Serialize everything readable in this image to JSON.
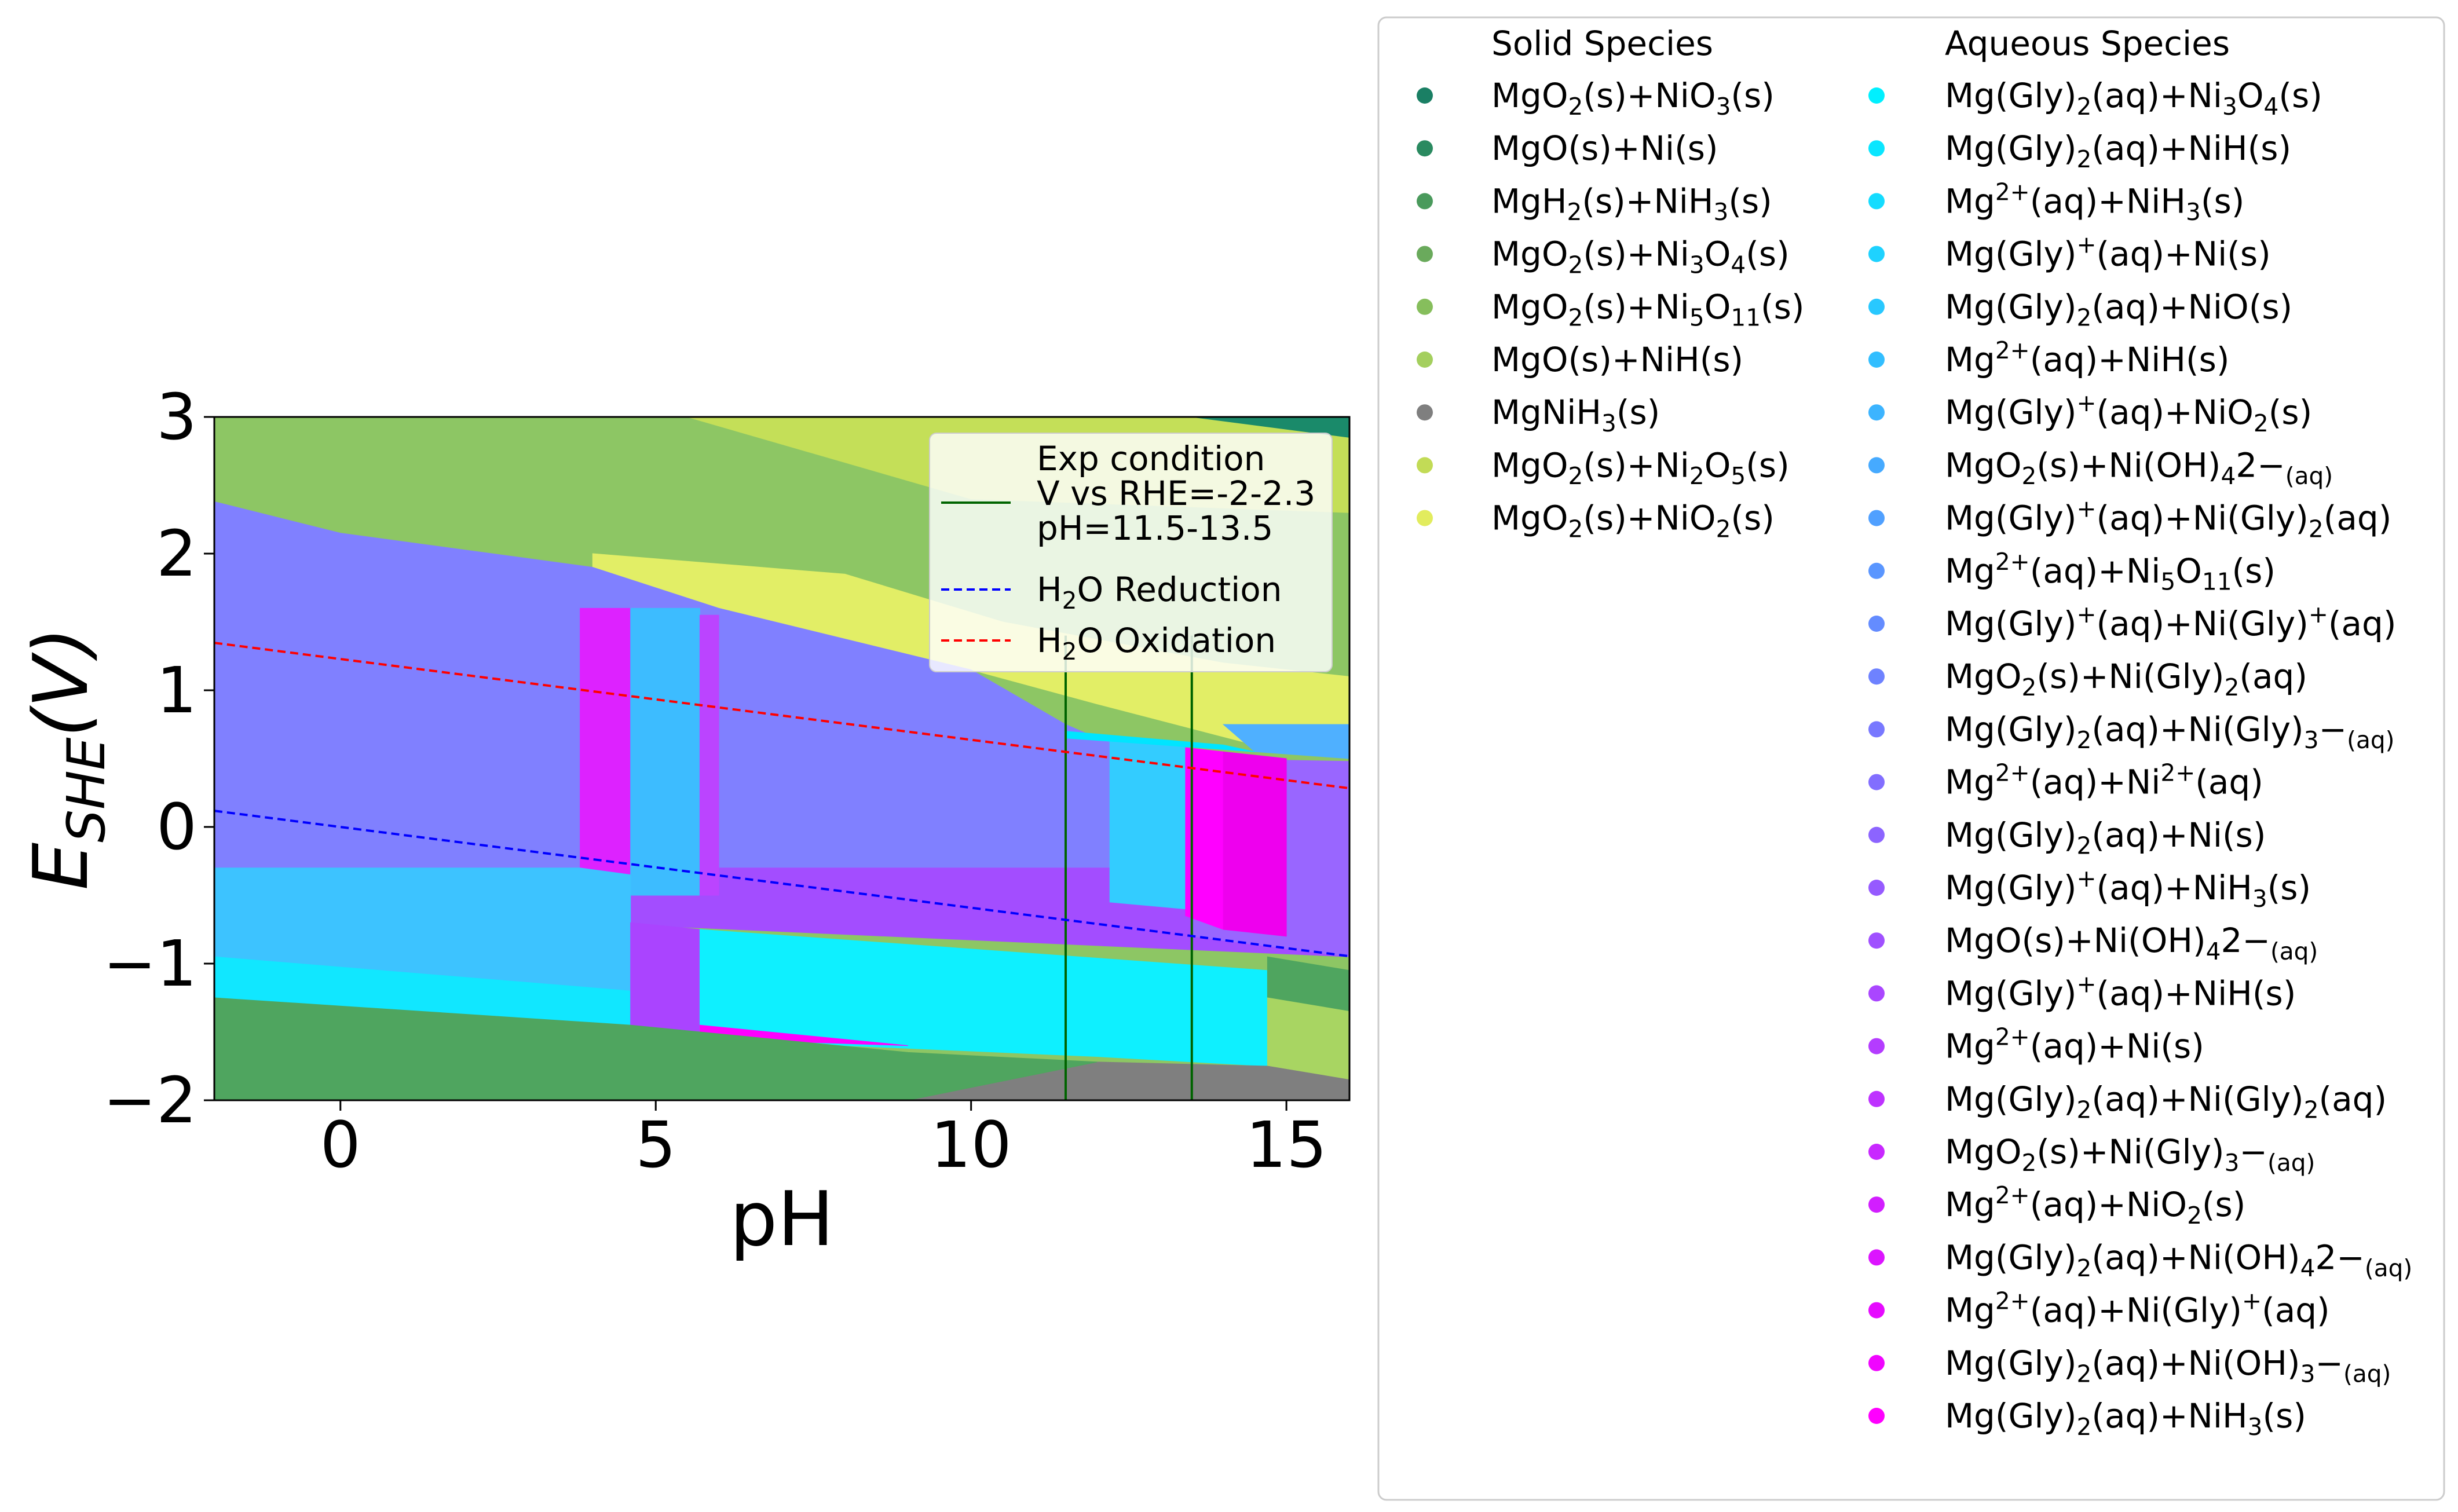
{
  "chart_data": {
    "type": "area",
    "title": "",
    "xlabel": "pH",
    "ylabel": "E_SHE(V)",
    "xlim": [
      -2,
      16
    ],
    "ylim": [
      -2,
      3
    ],
    "xticks": [
      0,
      5,
      10,
      15
    ],
    "yticks": [
      -2,
      -1,
      0,
      1,
      2,
      3
    ],
    "grid": false,
    "legend_placement": "right",
    "inset_legend_placement": "top-right",
    "lines": [
      {
        "name": "V vs RHE=-2-2.3",
        "legend": [
          "Exp condition",
          "V vs RHE=-2-2.3",
          "pH=11.5-13.5"
        ],
        "style": "solid",
        "color": "#006400",
        "x": [
          11.5,
          11.5
        ],
        "y": [
          -2,
          1.4
        ]
      },
      {
        "name": "V vs RHE=-2-2.3",
        "style": "solid",
        "color": "#006400",
        "x": [
          13.5,
          13.5
        ],
        "y": [
          -2,
          1.4
        ]
      },
      {
        "name": "H2O Reduction",
        "legend": [
          "H",
          "2",
          "O Reduction"
        ],
        "style": "dashed",
        "color": "#0000ff",
        "x": [
          -2,
          16
        ],
        "y": [
          0.118,
          -0.946
        ]
      },
      {
        "name": "H2O Oxidation",
        "legend": [
          "H",
          "2",
          "O Oxidation"
        ],
        "style": "dashed",
        "color": "#ff0000",
        "x": [
          -2,
          16
        ],
        "y": [
          1.347,
          0.283
        ]
      }
    ],
    "regions": [
      {
        "species": "MgO(s)+NiH(s)",
        "color": "#8dc664",
        "points": [
          [
            -2,
            3
          ],
          [
            16,
            3
          ],
          [
            16,
            -2
          ],
          [
            -2,
            -2
          ]
        ]
      },
      {
        "species": "MgO2(s)+Ni2O5(s)",
        "color": "#c4df58",
        "points": [
          [
            5.5,
            3
          ],
          [
            16,
            3
          ],
          [
            16,
            2.3
          ],
          [
            10,
            2.4
          ],
          [
            5.5,
            3
          ]
        ]
      },
      {
        "species": "MgO2(s)+NiO3(s)",
        "color": "#1a8a6a",
        "points": [
          [
            13.5,
            3
          ],
          [
            16,
            3
          ],
          [
            16,
            2.85
          ]
        ]
      },
      {
        "species": "MgO2(s)+NiO2(s)",
        "color": "#e2ee66",
        "points": [
          [
            4,
            2.0
          ],
          [
            8,
            1.85
          ],
          [
            10.5,
            1.5
          ],
          [
            14,
            1.2
          ],
          [
            16,
            1.1
          ],
          [
            16,
            0.65
          ],
          [
            14.5,
            0.6
          ],
          [
            12,
            0.9
          ],
          [
            10,
            1.15
          ],
          [
            6,
            1.6
          ],
          [
            4,
            1.9
          ]
        ]
      },
      {
        "species": "Mg(Gly)2(aq)+Ni(Gly)3-(aq)",
        "color": "#8080ff",
        "points": [
          [
            -2,
            2.38
          ],
          [
            0,
            2.15
          ],
          [
            4,
            1.9
          ],
          [
            6,
            1.6
          ],
          [
            10,
            1.15
          ],
          [
            11.5,
            0.75
          ],
          [
            12,
            0.65
          ],
          [
            14,
            0.5
          ],
          [
            16,
            0.4
          ],
          [
            16,
            -0.3
          ],
          [
            -2,
            -0.3
          ]
        ]
      },
      {
        "species": "Mg(Gly)2(aq)+NiO(s)",
        "color": "#4fb0ff",
        "points": [
          [
            14,
            0.75
          ],
          [
            16,
            0.75
          ],
          [
            16,
            0.5
          ],
          [
            14.5,
            0.55
          ]
        ]
      },
      {
        "species": "Mg(Gly)+(aq)+NiH3(s)",
        "color": "#a34dff",
        "points": [
          [
            3.8,
            -0.3
          ],
          [
            16,
            -0.3
          ],
          [
            16,
            -0.95
          ],
          [
            3.8,
            -0.7
          ]
        ]
      },
      {
        "species": "Mg(Gly)2(aq)+Ni(s)",
        "color": "#9966ff",
        "points": [
          [
            13.5,
            0.5
          ],
          [
            16,
            0.48
          ],
          [
            16,
            -0.95
          ],
          [
            13.5,
            -0.8
          ]
        ]
      },
      {
        "species": "Mg2+(aq)+Ni(OH)4 2-(aq)",
        "color": "#dd22ff",
        "points": [
          [
            3.8,
            1.6
          ],
          [
            4.6,
            1.6
          ],
          [
            4.6,
            -0.35
          ],
          [
            3.8,
            -0.35
          ]
        ]
      },
      {
        "species": "Mg(Gly)+(aq)+NiO2(s)",
        "color": "#3dbcff",
        "points": [
          [
            4.6,
            1.6
          ],
          [
            5.7,
            1.6
          ],
          [
            5.7,
            -0.5
          ],
          [
            4.6,
            -0.5
          ]
        ]
      },
      {
        "species": "Mg2+(aq)+NiO2(s)",
        "color": "#bb44ff",
        "points": [
          [
            5.7,
            1.55
          ],
          [
            6,
            1.55
          ],
          [
            6,
            -0.5
          ],
          [
            5.7,
            -0.5
          ]
        ]
      },
      {
        "species": "Mg(Gly)+(aq)+Ni(s)",
        "color": "#33ccff",
        "points": [
          [
            12.2,
            0.65
          ],
          [
            13.4,
            0.6
          ],
          [
            13.4,
            -0.6
          ],
          [
            12.2,
            -0.55
          ]
        ]
      },
      {
        "species": "Mg2+(aq)+Ni(Gly)+(aq)",
        "color": "#ff00ff",
        "points": [
          [
            13.4,
            0.58
          ],
          [
            14,
            0.55
          ],
          [
            14,
            -0.75
          ],
          [
            13.4,
            -0.65
          ]
        ]
      },
      {
        "species": "Mg(Gly)2(aq)+Ni(OH)4 2-(aq)",
        "color": "#ee00ee",
        "points": [
          [
            14,
            0.55
          ],
          [
            15,
            0.5
          ],
          [
            15,
            -0.8
          ],
          [
            14,
            -0.75
          ]
        ]
      },
      {
        "species": "Mg(Gly)2(aq)+Ni3O4(s)",
        "color": "#00e5ff",
        "points": [
          [
            11.5,
            0.7
          ],
          [
            14,
            0.6
          ],
          [
            14.5,
            0.55
          ],
          [
            11.5,
            0.65
          ]
        ]
      },
      {
        "species": "Mg2+(aq)+NiH(s)",
        "color": "#3dc3ff",
        "points": [
          [
            -2,
            -0.3
          ],
          [
            3.8,
            -0.3
          ],
          [
            4.6,
            -0.35
          ],
          [
            4.6,
            -1.45
          ],
          [
            -2,
            -1.25
          ]
        ]
      },
      {
        "species": "Mg(Gly)2(aq)+NiH(s)",
        "color": "#11e7ff",
        "points": [
          [
            -2,
            -0.95
          ],
          [
            4.6,
            -1.2
          ],
          [
            4.6,
            -1.45
          ],
          [
            -2,
            -1.25
          ]
        ]
      },
      {
        "species": "MgO(s)+Ni(OH)4 2-(aq)",
        "color": "#aa44ff",
        "points": [
          [
            4.6,
            -0.7
          ],
          [
            5.7,
            -0.75
          ],
          [
            5.7,
            -1.5
          ],
          [
            4.6,
            -1.45
          ]
        ]
      },
      {
        "species": "Mg(Gly)2(aq)+Ni3O4(s)",
        "color": "#0ef0ff",
        "points": [
          [
            5.7,
            -0.75
          ],
          [
            14.7,
            -1.05
          ],
          [
            14.7,
            -1.75
          ],
          [
            12,
            -1.68
          ],
          [
            8,
            -1.6
          ],
          [
            5.7,
            -1.5
          ]
        ]
      },
      {
        "species": "Mg(Gly)2(aq)+NiH3(s)",
        "color": "#ff00ff",
        "points": [
          [
            5.7,
            -1.45
          ],
          [
            9,
            -1.6
          ],
          [
            5.7,
            -1.55
          ]
        ]
      },
      {
        "species": "MgH2(s)+NiH3(s)",
        "color": "#4fa55f",
        "points": [
          [
            14.7,
            -0.95
          ],
          [
            16,
            -1.05
          ],
          [
            16,
            -1.35
          ],
          [
            14.7,
            -1.25
          ]
        ]
      },
      {
        "species": "MgO(s)+NiH(s)",
        "color": "#a8d562",
        "points": [
          [
            14.7,
            -1.25
          ],
          [
            16,
            -1.35
          ],
          [
            16,
            -1.85
          ],
          [
            14.7,
            -1.75
          ]
        ]
      },
      {
        "species": "MgNiH3(s)",
        "color": "#7f7f7f",
        "points": [
          [
            9,
            -2
          ],
          [
            16,
            -2
          ],
          [
            16,
            -1.85
          ],
          [
            14.7,
            -1.75
          ],
          [
            12,
            -1.72
          ]
        ]
      },
      {
        "species": "MgH2(s)+NiH3(s)",
        "color": "#4fa55f",
        "points": [
          [
            -2,
            -1.25
          ],
          [
            4.6,
            -1.45
          ],
          [
            9,
            -1.65
          ],
          [
            12,
            -1.72
          ],
          [
            9,
            -2
          ],
          [
            -2,
            -2
          ]
        ]
      }
    ],
    "legend": {
      "solid_title": "Solid Species",
      "aqueous_title": "Aqueous Species",
      "solid": [
        {
          "label": [
            "MgO",
            "2",
            "(s)+NiO",
            "3",
            "(s)"
          ],
          "color": "#1a7f64"
        },
        {
          "label": [
            "MgO(s)+Ni(s)"
          ],
          "color": "#2a8a60"
        },
        {
          "label": [
            "MgH",
            "2",
            "(s)+NiH",
            "3",
            "(s)"
          ],
          "color": "#4a9a5c"
        },
        {
          "label": [
            "MgO",
            "2",
            "(s)+Ni",
            "3",
            "O",
            "4",
            "(s)"
          ],
          "color": "#6aaa5c"
        },
        {
          "label": [
            "MgO",
            "2",
            "(s)+Ni",
            "5",
            "O",
            "11",
            "(s)"
          ],
          "color": "#86be5c"
        },
        {
          "label": [
            "MgO(s)+NiH(s)"
          ],
          "color": "#a4cf5e"
        },
        {
          "label": [
            "MgNiH",
            "3",
            "(s)"
          ],
          "color": "#7f7f7f"
        },
        {
          "label": [
            "MgO",
            "2",
            "(s)+Ni",
            "2",
            "O",
            "5",
            "(s)"
          ],
          "color": "#c2db56"
        },
        {
          "label": [
            "MgO",
            "2",
            "(s)+NiO",
            "2",
            "(s)"
          ],
          "color": "#e2ec5e"
        }
      ],
      "aqueous": [
        {
          "label": [
            "Mg(Gly)",
            "2",
            "(aq)+Ni",
            "3",
            "O",
            "4",
            "(s)"
          ],
          "color": "#00f0ff"
        },
        {
          "label": [
            "Mg(Gly)",
            "2",
            "(aq)+NiH(s)"
          ],
          "color": "#0ae6ff"
        },
        {
          "label": [
            "Mg",
            "2+",
            "(aq)+NiH",
            "3",
            "(s)"
          ],
          "color": "#14dcff"
        },
        {
          "label": [
            "Mg(Gly)",
            "+",
            "(aq)+Ni(s)"
          ],
          "color": "#1ed2ff"
        },
        {
          "label": [
            "Mg(Gly)",
            "2",
            "(aq)+NiO(s)"
          ],
          "color": "#28c8ff"
        },
        {
          "label": [
            "Mg",
            "2+",
            "(aq)+NiH(s)"
          ],
          "color": "#32beff"
        },
        {
          "label": [
            "Mg(Gly)",
            "+",
            "(aq)+NiO",
            "2",
            "(s)"
          ],
          "color": "#3cb4ff"
        },
        {
          "label": [
            "MgO",
            "2",
            "(s)+Ni(OH)",
            "4",
            "2−",
            "(aq)"
          ],
          "color": "#46aaff"
        },
        {
          "label": [
            "Mg(Gly)",
            "+",
            "(aq)+Ni(Gly)",
            "2",
            "(aq)"
          ],
          "color": "#50a0ff"
        },
        {
          "label": [
            "Mg",
            "2+",
            "(aq)+Ni",
            "5",
            "O",
            "11",
            "(s)"
          ],
          "color": "#5a96ff"
        },
        {
          "label": [
            "Mg(Gly)",
            "+",
            "(aq)+Ni(Gly)",
            "+",
            "(aq)"
          ],
          "color": "#648cff"
        },
        {
          "label": [
            "MgO",
            "2",
            "(s)+Ni(Gly)",
            "2",
            "(aq)"
          ],
          "color": "#6e82ff"
        },
        {
          "label": [
            "Mg(Gly)",
            "2",
            "(aq)+Ni(Gly)",
            "3",
            "−",
            "(aq)"
          ],
          "color": "#7878ff"
        },
        {
          "label": [
            "Mg",
            "2+",
            "(aq)+Ni",
            "2+",
            "(aq)"
          ],
          "color": "#826eff"
        },
        {
          "label": [
            "Mg(Gly)",
            "2",
            "(aq)+Ni(s)"
          ],
          "color": "#8c64ff"
        },
        {
          "label": [
            "Mg(Gly)",
            "+",
            "(aq)+NiH",
            "3",
            "(s)"
          ],
          "color": "#965aff"
        },
        {
          "label": [
            "MgO(s)+Ni(OH)",
            "4",
            "2−",
            "(aq)"
          ],
          "color": "#a050ff"
        },
        {
          "label": [
            "Mg(Gly)",
            "+",
            "(aq)+NiH(s)"
          ],
          "color": "#aa46ff"
        },
        {
          "label": [
            "Mg",
            "2+",
            "(aq)+Ni(s)"
          ],
          "color": "#b43cff"
        },
        {
          "label": [
            "Mg(Gly)",
            "2",
            "(aq)+Ni(Gly)",
            "2",
            "(aq)"
          ],
          "color": "#be32ff"
        },
        {
          "label": [
            "MgO",
            "2",
            "(s)+Ni(Gly)",
            "3",
            "−",
            "(aq)"
          ],
          "color": "#c828ff"
        },
        {
          "label": [
            "Mg",
            "2+",
            "(aq)+NiO",
            "2",
            "(s)"
          ],
          "color": "#d21eff"
        },
        {
          "label": [
            "Mg(Gly)",
            "2",
            "(aq)+Ni(OH)",
            "4",
            "2−",
            "(aq)"
          ],
          "color": "#dc14ff"
        },
        {
          "label": [
            "Mg",
            "2+",
            "(aq)+Ni(Gly)",
            "+",
            "(aq)"
          ],
          "color": "#e60aff"
        },
        {
          "label": [
            "Mg(Gly)",
            "2",
            "(aq)+Ni(OH)",
            "3",
            "−",
            "(aq)"
          ],
          "color": "#f005ff"
        },
        {
          "label": [
            "Mg(Gly)",
            "2",
            "(aq)+NiH",
            "3",
            "(s)"
          ],
          "color": "#ff00ff"
        }
      ]
    }
  }
}
